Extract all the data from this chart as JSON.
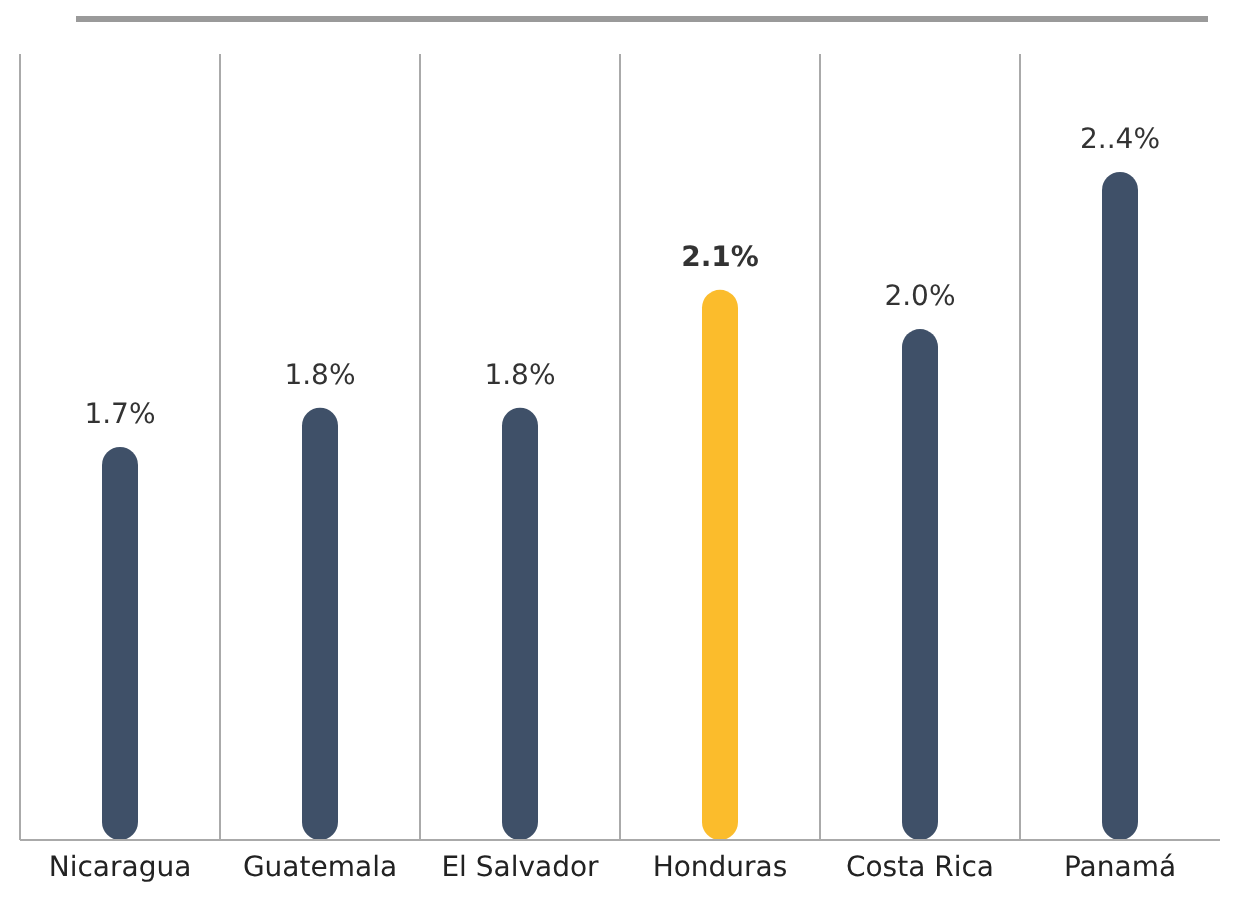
{
  "chart_data": {
    "type": "bar",
    "categories": [
      "Nicaragua",
      "Guatemala",
      "El Salvador",
      "Honduras",
      "Costa Rica",
      "Panamá"
    ],
    "values": [
      1.7,
      1.8,
      1.8,
      2.1,
      2.0,
      2.4
    ],
    "colors": [
      "#3f5068",
      "#3f5068",
      "#3f5068",
      "#fbbc2c",
      "#3f5068",
      "#3f5068"
    ],
    "value_labels": [
      "1.7%",
      "1.8%",
      "1.8%",
      "2.1%",
      "2.0%",
      "2..4%"
    ],
    "ylim": [
      0.7,
      2.7
    ],
    "tick_labels": "x",
    "grid": "x",
    "legend": false
  }
}
